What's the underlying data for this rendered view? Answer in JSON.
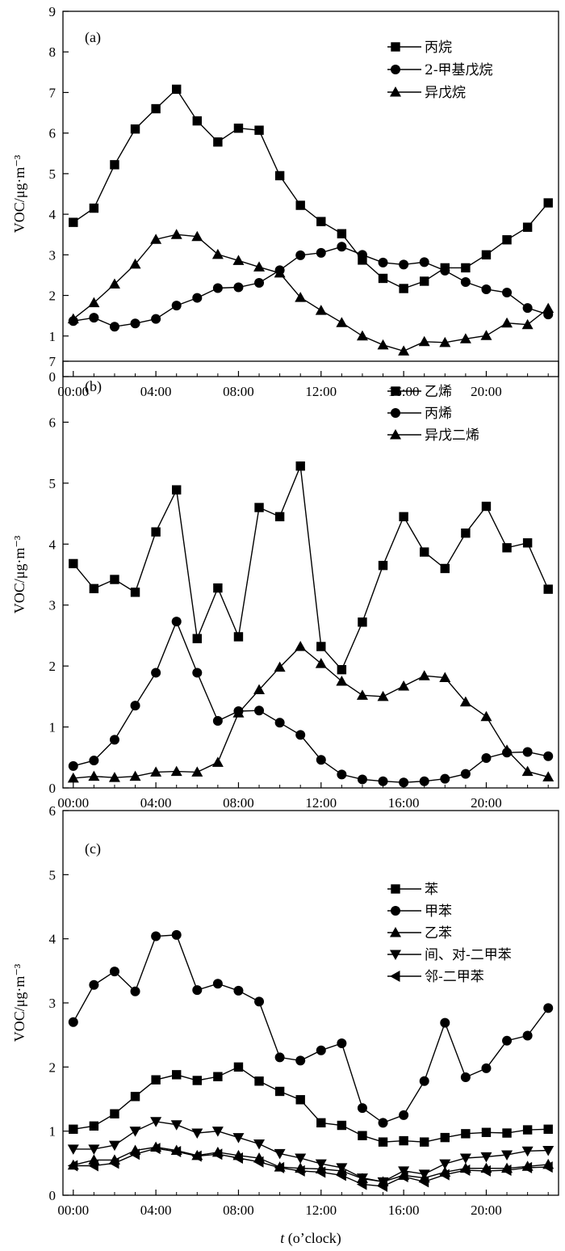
{
  "chart_data": [
    {
      "type": "line",
      "panel_label": "(a)",
      "ylabel": "VOC/μg·m⁻³",
      "ylim": [
        0,
        9
      ],
      "yticks": [
        0,
        1,
        2,
        3,
        4,
        5,
        6,
        7,
        8,
        9
      ],
      "xlim": [
        -0.5,
        23.5
      ],
      "xticks": [
        0,
        4,
        8,
        12,
        16,
        20
      ],
      "xtick_labels": [
        "00:00",
        "04:00",
        "08:00",
        "12:00",
        "16:00",
        "20:00"
      ],
      "legend_position": "top-right",
      "x": [
        0,
        1,
        2,
        3,
        4,
        5,
        6,
        7,
        8,
        9,
        10,
        11,
        12,
        13,
        14,
        15,
        16,
        17,
        18,
        19,
        20,
        21,
        22,
        23
      ],
      "series": [
        {
          "name": "丙烷",
          "marker": "square",
          "values": [
            3.8,
            4.15,
            5.22,
            6.1,
            6.6,
            7.08,
            6.3,
            5.78,
            6.12,
            6.07,
            4.95,
            4.22,
            3.82,
            3.52,
            2.87,
            2.42,
            2.17,
            2.35,
            2.68,
            2.68,
            3.0,
            3.37,
            3.68,
            4.28
          ]
        },
        {
          "name": "2-甲基戊烷",
          "marker": "circle",
          "values": [
            1.37,
            1.45,
            1.23,
            1.31,
            1.42,
            1.75,
            1.94,
            2.18,
            2.2,
            2.31,
            2.62,
            2.99,
            3.05,
            3.2,
            3.0,
            2.81,
            2.76,
            2.82,
            2.61,
            2.33,
            2.15,
            2.07,
            1.69,
            1.53
          ]
        },
        {
          "name": "异戊烷",
          "marker": "triangle-up",
          "values": [
            1.42,
            1.82,
            2.28,
            2.77,
            3.38,
            3.5,
            3.45,
            3.01,
            2.86,
            2.7,
            2.55,
            1.95,
            1.63,
            1.33,
            1.0,
            0.78,
            0.63,
            0.86,
            0.84,
            0.93,
            1.01,
            1.32,
            1.28,
            1.68
          ]
        }
      ]
    },
    {
      "type": "line",
      "panel_label": "(b)",
      "ylabel": "VOC/μg·m⁻³",
      "ylim": [
        0,
        7
      ],
      "yticks": [
        0,
        1,
        2,
        3,
        4,
        5,
        6,
        7
      ],
      "xlim": [
        -0.5,
        23.5
      ],
      "xticks": [
        0,
        4,
        8,
        12,
        16,
        20
      ],
      "xtick_labels": [
        "00:00",
        "04:00",
        "08:00",
        "12:00",
        "16:00",
        "20:00"
      ],
      "legend_position": "top-right",
      "x": [
        0,
        1,
        2,
        3,
        4,
        5,
        6,
        7,
        8,
        9,
        10,
        11,
        12,
        13,
        14,
        15,
        16,
        17,
        18,
        19,
        20,
        21,
        22,
        23
      ],
      "series": [
        {
          "name": "乙烯",
          "marker": "square",
          "values": [
            3.68,
            3.27,
            3.42,
            3.21,
            4.2,
            4.89,
            2.45,
            3.28,
            2.48,
            4.6,
            4.45,
            5.28,
            2.32,
            1.94,
            2.72,
            3.65,
            4.45,
            3.87,
            3.6,
            4.18,
            4.62,
            3.94,
            4.02,
            3.26
          ]
        },
        {
          "name": "丙烯",
          "marker": "circle",
          "values": [
            0.36,
            0.45,
            0.79,
            1.35,
            1.89,
            2.73,
            1.89,
            1.1,
            1.26,
            1.27,
            1.07,
            0.87,
            0.46,
            0.22,
            0.14,
            0.11,
            0.09,
            0.11,
            0.15,
            0.23,
            0.49,
            0.58,
            0.59,
            0.52
          ]
        },
        {
          "name": "异戊二烯",
          "marker": "triangle-up",
          "values": [
            0.16,
            0.19,
            0.17,
            0.19,
            0.26,
            0.27,
            0.26,
            0.42,
            1.23,
            1.61,
            1.98,
            2.32,
            2.04,
            1.75,
            1.52,
            1.5,
            1.67,
            1.84,
            1.81,
            1.41,
            1.17,
            0.62,
            0.27,
            0.18
          ]
        }
      ]
    },
    {
      "type": "line",
      "panel_label": "(c)",
      "ylabel": "VOC/μg·m⁻³",
      "xlabel_italic": "t",
      "xlabel_rest": " (o’clock)",
      "ylim": [
        0,
        6
      ],
      "yticks": [
        0,
        1,
        2,
        3,
        4,
        5,
        6
      ],
      "xlim": [
        -0.5,
        23.5
      ],
      "xticks": [
        0,
        4,
        8,
        12,
        16,
        20
      ],
      "xtick_labels": [
        "00:00",
        "04:00",
        "08:00",
        "12:00",
        "16:00",
        "20:00"
      ],
      "legend_position": "top-right",
      "x": [
        0,
        1,
        2,
        3,
        4,
        5,
        6,
        7,
        8,
        9,
        10,
        11,
        12,
        13,
        14,
        15,
        16,
        17,
        18,
        19,
        20,
        21,
        22,
        23
      ],
      "series": [
        {
          "name": "苯",
          "marker": "square",
          "values": [
            1.03,
            1.08,
            1.27,
            1.54,
            1.8,
            1.88,
            1.79,
            1.85,
            2.0,
            1.78,
            1.62,
            1.49,
            1.13,
            1.09,
            0.93,
            0.83,
            0.85,
            0.83,
            0.9,
            0.96,
            0.98,
            0.97,
            1.02,
            1.03
          ]
        },
        {
          "name": "甲苯",
          "marker": "circle",
          "values": [
            2.7,
            3.28,
            3.49,
            3.18,
            4.04,
            4.06,
            3.2,
            3.3,
            3.19,
            3.02,
            2.15,
            2.1,
            2.26,
            2.37,
            1.36,
            1.13,
            1.25,
            1.78,
            2.69,
            1.84,
            1.98,
            2.41,
            2.49,
            2.92
          ]
        },
        {
          "name": "乙苯",
          "marker": "triangle-up",
          "values": [
            0.47,
            0.55,
            0.55,
            0.7,
            0.75,
            0.7,
            0.62,
            0.67,
            0.62,
            0.58,
            0.44,
            0.42,
            0.41,
            0.38,
            0.26,
            0.21,
            0.31,
            0.27,
            0.36,
            0.42,
            0.42,
            0.42,
            0.45,
            0.48
          ]
        },
        {
          "name": "间、对-二甲苯",
          "marker": "triangle-down",
          "values": [
            0.72,
            0.72,
            0.78,
            1.0,
            1.15,
            1.1,
            0.97,
            1.0,
            0.9,
            0.8,
            0.65,
            0.58,
            0.49,
            0.43,
            0.27,
            0.21,
            0.38,
            0.33,
            0.49,
            0.58,
            0.6,
            0.63,
            0.69,
            0.7
          ]
        },
        {
          "name": "邻-二甲苯",
          "marker": "triangle-left",
          "values": [
            0.46,
            0.46,
            0.5,
            0.64,
            0.73,
            0.68,
            0.61,
            0.64,
            0.58,
            0.52,
            0.43,
            0.38,
            0.36,
            0.31,
            0.17,
            0.14,
            0.29,
            0.21,
            0.32,
            0.39,
            0.38,
            0.39,
            0.43,
            0.44
          ]
        }
      ]
    }
  ]
}
